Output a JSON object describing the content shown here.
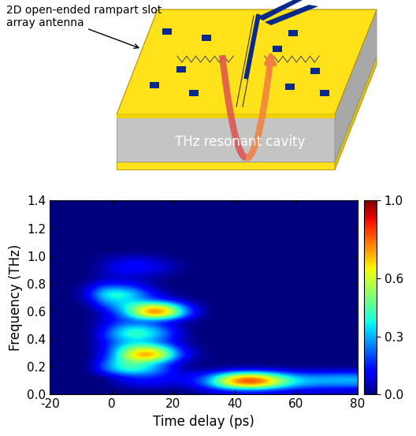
{
  "diagram": {
    "antenna_label": "2D open-ended rampart slot array antenna",
    "cavity_label": "THz resonant cavity"
  },
  "chart_data": {
    "type": "heatmap",
    "x_label": "Time delay (ps)",
    "y_label": "Frequency (THz)",
    "xlim": [
      -20,
      80
    ],
    "xticks": [
      -20,
      0,
      20,
      40,
      60,
      80
    ],
    "ylim": [
      0,
      1.4
    ],
    "yticks": [
      {
        "value": 0,
        "label": "0.0"
      },
      0.2,
      0.4,
      0.6,
      0.8,
      {
        "value": 1,
        "label": "1.0"
      },
      1.2,
      1.4
    ],
    "colorbar_range": [
      0,
      1
    ],
    "colorbar_ticks": [
      {
        "value": 0,
        "label": "0.0"
      },
      0.3,
      0.6,
      {
        "value": 1,
        "label": "1.0"
      }
    ],
    "cells": [
      [
        0,
        0,
        0,
        0,
        0,
        0,
        0,
        0,
        0,
        0.02,
        0.05,
        0.08,
        0.1,
        0.1,
        0.08,
        0.07,
        0.06,
        0.06,
        0.05,
        0.05
      ],
      [
        0,
        0,
        0,
        0,
        0.05,
        0.1,
        0.12,
        0.1,
        0.08,
        0.15,
        0.35,
        0.7,
        0.9,
        0.9,
        0.7,
        0.45,
        0.35,
        0.3,
        0.3,
        0.3
      ],
      [
        0,
        0,
        0,
        0,
        0.08,
        0.15,
        0.15,
        0.12,
        0.1,
        0.15,
        0.3,
        0.6,
        0.8,
        0.8,
        0.6,
        0.4,
        0.3,
        0.3,
        0.32,
        0.32
      ],
      [
        0,
        0,
        0,
        0.2,
        0.4,
        0.45,
        0.35,
        0.2,
        0.05,
        0.02,
        0.02,
        0.03,
        0.05,
        0.05,
        0.04,
        0.03,
        0.03,
        0.03,
        0.03,
        0.03
      ],
      [
        0,
        0,
        0,
        0.2,
        0.4,
        0.45,
        0.35,
        0.2,
        0.05,
        0,
        0,
        0,
        0,
        0,
        0,
        0,
        0,
        0,
        0,
        0
      ],
      [
        0,
        0,
        0,
        0.1,
        0.4,
        0.75,
        0.85,
        0.6,
        0.2,
        0.05,
        0,
        0,
        0,
        0,
        0,
        0,
        0,
        0,
        0,
        0
      ],
      [
        0,
        0,
        0,
        0.1,
        0.35,
        0.6,
        0.65,
        0.45,
        0.15,
        0.03,
        0,
        0,
        0,
        0,
        0,
        0,
        0,
        0,
        0,
        0
      ],
      [
        0,
        0,
        0,
        0.1,
        0.25,
        0.3,
        0.25,
        0.15,
        0.05,
        0,
        0,
        0,
        0,
        0,
        0,
        0,
        0,
        0,
        0,
        0
      ],
      [
        0,
        0,
        0,
        0.15,
        0.35,
        0.45,
        0.4,
        0.25,
        0.08,
        0,
        0,
        0,
        0,
        0,
        0,
        0,
        0,
        0,
        0,
        0
      ],
      [
        0,
        0,
        0,
        0.1,
        0.3,
        0.4,
        0.35,
        0.2,
        0.05,
        0,
        0,
        0,
        0,
        0,
        0,
        0,
        0,
        0,
        0,
        0
      ],
      [
        0,
        0,
        0,
        0.08,
        0.15,
        0.15,
        0.12,
        0.08,
        0.03,
        0,
        0,
        0,
        0,
        0,
        0,
        0,
        0,
        0,
        0,
        0
      ],
      [
        0,
        0,
        0,
        0.05,
        0.2,
        0.5,
        0.85,
        0.8,
        0.4,
        0.1,
        0,
        0,
        0,
        0,
        0,
        0,
        0,
        0,
        0,
        0
      ],
      [
        0,
        0,
        0,
        0.15,
        0.3,
        0.5,
        0.75,
        0.7,
        0.35,
        0.08,
        0,
        0,
        0,
        0,
        0,
        0,
        0,
        0,
        0,
        0
      ],
      [
        0,
        0,
        0.05,
        0.3,
        0.35,
        0.3,
        0.2,
        0.12,
        0.05,
        0,
        0,
        0,
        0,
        0,
        0,
        0,
        0,
        0,
        0,
        0
      ],
      [
        0,
        0,
        0.1,
        0.4,
        0.45,
        0.35,
        0.15,
        0.05,
        0,
        0,
        0,
        0,
        0,
        0,
        0,
        0,
        0,
        0,
        0,
        0
      ],
      [
        0,
        0,
        0.05,
        0.2,
        0.2,
        0.15,
        0.05,
        0,
        0,
        0,
        0,
        0,
        0,
        0,
        0,
        0,
        0,
        0,
        0,
        0
      ],
      [
        0,
        0,
        0,
        0.05,
        0.05,
        0.05,
        0.03,
        0,
        0,
        0,
        0,
        0,
        0,
        0,
        0,
        0,
        0,
        0,
        0,
        0
      ],
      [
        0,
        0,
        0,
        0.05,
        0.1,
        0.1,
        0.08,
        0.05,
        0,
        0,
        0,
        0,
        0,
        0,
        0,
        0,
        0,
        0,
        0,
        0
      ],
      [
        0,
        0,
        0,
        0.05,
        0.12,
        0.15,
        0.12,
        0.08,
        0.03,
        0,
        0,
        0,
        0,
        0,
        0,
        0,
        0,
        0,
        0,
        0
      ],
      [
        0,
        0,
        0,
        0.03,
        0.06,
        0.08,
        0.06,
        0.03,
        0,
        0,
        0,
        0,
        0,
        0,
        0,
        0,
        0,
        0,
        0,
        0
      ],
      [
        0,
        0,
        0,
        0,
        0,
        0,
        0,
        0,
        0,
        0,
        0,
        0,
        0,
        0,
        0,
        0,
        0,
        0,
        0,
        0
      ],
      [
        0,
        0,
        0,
        0,
        0,
        0,
        0,
        0,
        0,
        0,
        0,
        0,
        0,
        0,
        0,
        0,
        0,
        0,
        0,
        0
      ],
      [
        0,
        0,
        0,
        0,
        0,
        0,
        0,
        0,
        0,
        0,
        0,
        0,
        0,
        0,
        0,
        0,
        0,
        0,
        0,
        0
      ],
      [
        0,
        0,
        0,
        0,
        0,
        0,
        0,
        0,
        0,
        0,
        0,
        0,
        0,
        0,
        0,
        0,
        0,
        0,
        0,
        0
      ],
      [
        0,
        0,
        0,
        0,
        0,
        0,
        0,
        0,
        0,
        0,
        0,
        0,
        0,
        0,
        0,
        0,
        0,
        0,
        0,
        0
      ],
      [
        0,
        0,
        0,
        0,
        0,
        0,
        0,
        0,
        0,
        0,
        0,
        0,
        0,
        0,
        0,
        0,
        0,
        0,
        0,
        0
      ],
      [
        0,
        0,
        0,
        0,
        0,
        0,
        0,
        0,
        0,
        0,
        0,
        0,
        0,
        0,
        0,
        0,
        0,
        0,
        0,
        0
      ],
      [
        0,
        0,
        0,
        0,
        0,
        0,
        0,
        0,
        0,
        0,
        0,
        0,
        0,
        0,
        0,
        0,
        0,
        0,
        0,
        0
      ]
    ]
  }
}
